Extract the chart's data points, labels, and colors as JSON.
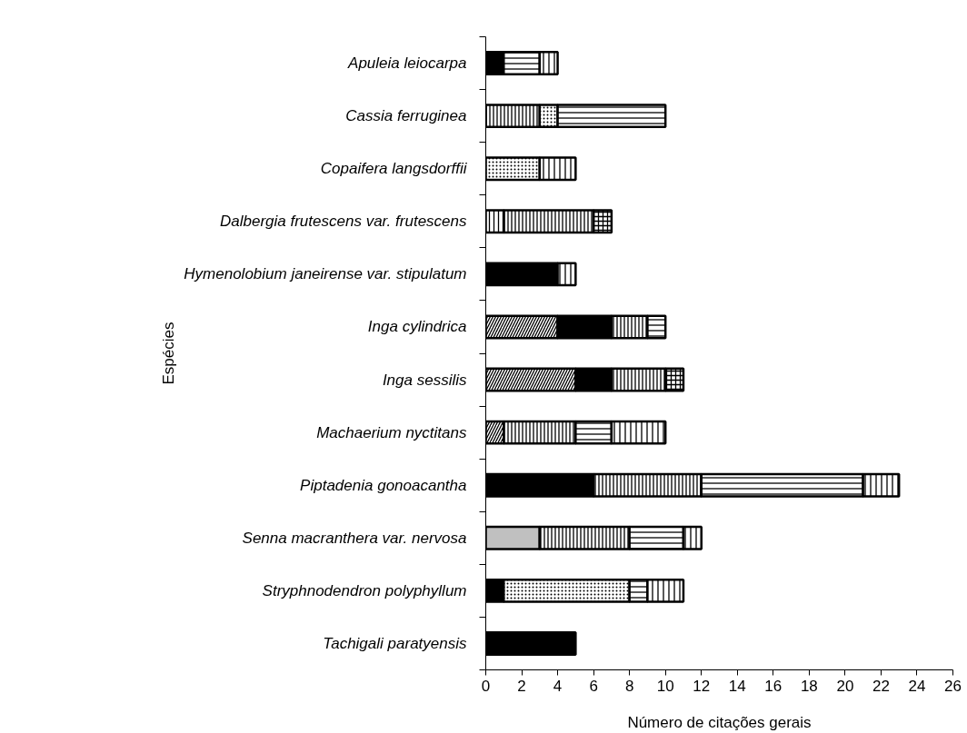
{
  "chart_data": {
    "type": "bar",
    "orientation": "horizontal",
    "stacked": true,
    "xlabel": "Número de citações gerais",
    "ylabel": "Espécies",
    "categories": [
      "Apuleia leiocarpa",
      "Cassia ferruginea",
      "Copaifera langsdorffii",
      "Dalbergia frutescens var. frutescens",
      "Hymenolobium janeirense var. stipulatum",
      "Inga cylindrica",
      "Inga sessilis",
      "Machaerium nyctitans",
      "Piptadenia gonoacantha",
      "Senna macranthera var. nervosa",
      "Stryphnodendron polyphyllum",
      "Tachigali paratyensis"
    ],
    "series": [
      {
        "color": "#000000",
        "values": [
          null,
          null,
          null,
          null,
          null,
          4,
          5,
          1,
          null,
          null,
          null,
          null
        ]
      },
      {
        "color": "#c0c0c0",
        "values": [
          null,
          null,
          null,
          null,
          null,
          null,
          null,
          null,
          null,
          3,
          null,
          null
        ]
      },
      {
        "color": "#000000",
        "values": [
          1,
          null,
          null,
          null,
          4,
          3,
          2,
          null,
          6,
          null,
          1,
          5
        ]
      },
      {
        "color": "#000000",
        "values": [
          null,
          null,
          null,
          1,
          null,
          null,
          null,
          null,
          null,
          null,
          null,
          null
        ]
      },
      {
        "color": "#000000",
        "values": [
          null,
          3,
          null,
          5,
          null,
          2,
          3,
          4,
          6,
          5,
          null,
          null
        ]
      },
      {
        "color": "#000000",
        "values": [
          null,
          1,
          3,
          null,
          null,
          null,
          null,
          null,
          null,
          null,
          7,
          null
        ]
      },
      {
        "color": "#000000",
        "values": [
          2,
          6,
          null,
          null,
          null,
          1,
          null,
          2,
          9,
          3,
          1,
          null
        ]
      },
      {
        "color": "#000000",
        "values": [
          1,
          null,
          2,
          null,
          1,
          null,
          null,
          3,
          2,
          1,
          2,
          null
        ]
      },
      {
        "color": "#000000",
        "values": [
          null,
          null,
          null,
          1,
          null,
          null,
          1,
          null,
          null,
          null,
          null,
          null
        ]
      }
    ],
    "xlim": [
      0,
      26
    ],
    "xticks": [
      0,
      2,
      4,
      6,
      8,
      10,
      12,
      14,
      16,
      18,
      20,
      22,
      24,
      26
    ],
    "grid": false
  }
}
